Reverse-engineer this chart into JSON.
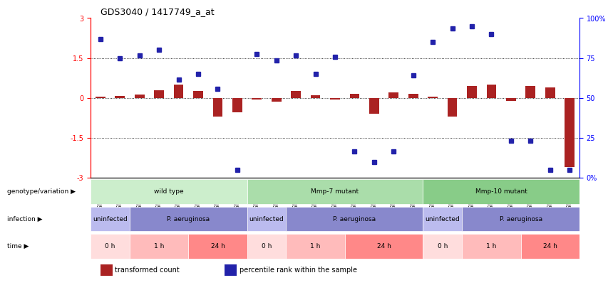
{
  "title": "GDS3040 / 1417749_a_at",
  "samples": [
    "GSM196062",
    "GSM196063",
    "GSM196064",
    "GSM196065",
    "GSM196066",
    "GSM196067",
    "GSM196068",
    "GSM196069",
    "GSM196070",
    "GSM196071",
    "GSM196072",
    "GSM196073",
    "GSM196074",
    "GSM196075",
    "GSM196076",
    "GSM196077",
    "GSM196078",
    "GSM196079",
    "GSM196080",
    "GSM196081",
    "GSM196082",
    "GSM196083",
    "GSM196084",
    "GSM196085",
    "GSM196086"
  ],
  "transformed_count": [
    0.05,
    0.08,
    0.12,
    0.3,
    0.5,
    0.25,
    -0.7,
    -0.55,
    -0.05,
    -0.15,
    0.25,
    0.1,
    -0.05,
    0.15,
    -0.6,
    0.2,
    0.15,
    0.05,
    -0.7,
    0.45,
    0.5,
    -0.1,
    0.45,
    0.4,
    -2.6
  ],
  "percentile_rank": [
    2.2,
    1.5,
    1.6,
    1.8,
    0.7,
    0.9,
    0.35,
    -2.7,
    1.65,
    1.4,
    1.6,
    0.9,
    1.55,
    -2.0,
    -2.4,
    -2.0,
    0.85,
    2.1,
    2.6,
    2.7,
    2.4,
    -1.6,
    -1.6,
    -2.7,
    -2.7
  ],
  "bar_color": "#aa2222",
  "dot_color": "#2222aa",
  "ylim": [
    -3,
    3
  ],
  "yticks": [
    -3,
    -1.5,
    0,
    1.5,
    3
  ],
  "y2ticks": [
    0,
    25,
    50,
    75,
    100
  ],
  "y2labels": [
    "0%",
    "25",
    "50",
    "75",
    "100%"
  ],
  "dotted_lines": [
    -1.5,
    0,
    1.5
  ],
  "genotype_groups": [
    {
      "label": "wild type",
      "start": 0,
      "end": 7,
      "color": "#cceecc"
    },
    {
      "label": "Mmp-7 mutant",
      "start": 8,
      "end": 16,
      "color": "#aaddaa"
    },
    {
      "label": "Mmp-10 mutant",
      "start": 17,
      "end": 24,
      "color": "#88cc88"
    }
  ],
  "infection_groups": [
    {
      "label": "uninfected",
      "start": 0,
      "end": 1,
      "color": "#bbbbee"
    },
    {
      "label": "P. aeruginosa",
      "start": 2,
      "end": 7,
      "color": "#8888cc"
    },
    {
      "label": "uninfected",
      "start": 8,
      "end": 9,
      "color": "#bbbbee"
    },
    {
      "label": "P. aeruginosa",
      "start": 10,
      "end": 16,
      "color": "#8888cc"
    },
    {
      "label": "uninfected",
      "start": 17,
      "end": 18,
      "color": "#bbbbee"
    },
    {
      "label": "P. aeruginosa",
      "start": 19,
      "end": 24,
      "color": "#8888cc"
    }
  ],
  "time_groups": [
    {
      "label": "0 h",
      "start": 0,
      "end": 1,
      "color": "#ffdddd"
    },
    {
      "label": "1 h",
      "start": 2,
      "end": 4,
      "color": "#ffbbbb"
    },
    {
      "label": "24 h",
      "start": 5,
      "end": 7,
      "color": "#ff8888"
    },
    {
      "label": "0 h",
      "start": 8,
      "end": 9,
      "color": "#ffdddd"
    },
    {
      "label": "1 h",
      "start": 10,
      "end": 12,
      "color": "#ffbbbb"
    },
    {
      "label": "24 h",
      "start": 13,
      "end": 16,
      "color": "#ff8888"
    },
    {
      "label": "0 h",
      "start": 17,
      "end": 18,
      "color": "#ffdddd"
    },
    {
      "label": "1 h",
      "start": 19,
      "end": 21,
      "color": "#ffbbbb"
    },
    {
      "label": "24 h",
      "start": 22,
      "end": 24,
      "color": "#ff8888"
    }
  ],
  "row_labels": [
    "genotype/variation",
    "infection",
    "time"
  ],
  "legend_items": [
    {
      "color": "#aa2222",
      "label": "transformed count"
    },
    {
      "color": "#2222aa",
      "label": "percentile rank within the sample"
    }
  ],
  "bg_color": "#ffffff",
  "plot_bg": "#ffffff"
}
